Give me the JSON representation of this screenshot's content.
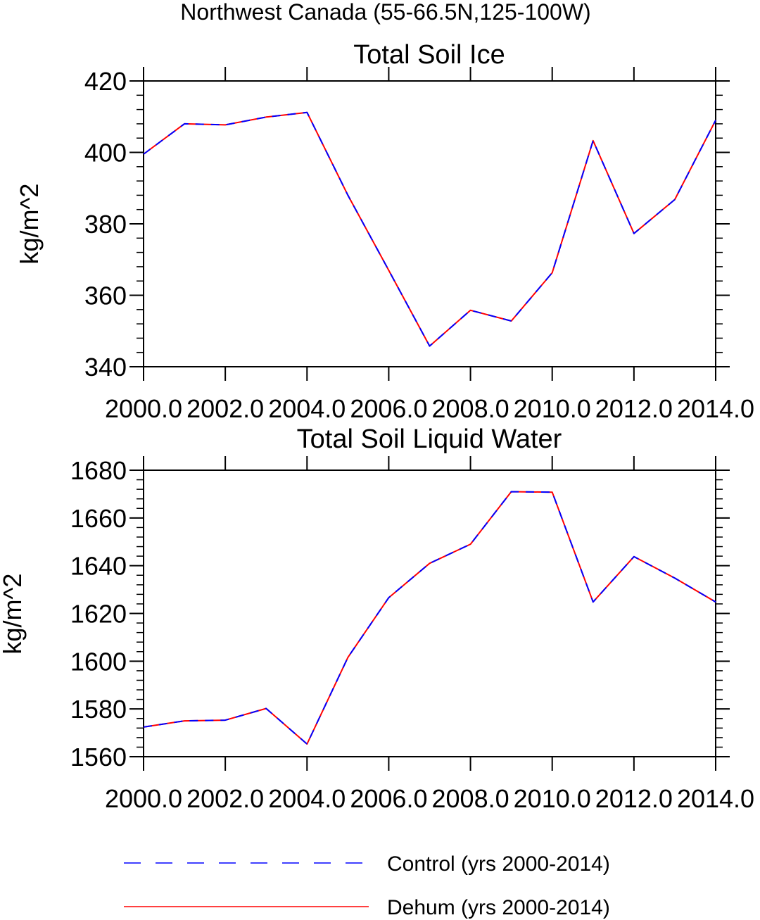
{
  "figure": {
    "title": "Northwest Canada (55-66.5N,125-100W)"
  },
  "chart_data": [
    {
      "type": "line",
      "title": "Total Soil Ice",
      "xlabel": "",
      "ylabel": "kg/m^2",
      "xlim": [
        2000,
        2014
      ],
      "ylim": [
        340,
        420
      ],
      "xticks": [
        2000,
        2002,
        2004,
        2006,
        2008,
        2010,
        2012,
        2014
      ],
      "xtick_labels": [
        "2000.0",
        "2002.0",
        "2004.0",
        "2006.0",
        "2008.0",
        "2010.0",
        "2012.0",
        "2014.0"
      ],
      "yticks": [
        340,
        360,
        380,
        400,
        420
      ],
      "ytick_labels": [
        "340",
        "360",
        "380",
        "400",
        "420"
      ],
      "x": [
        2000,
        2001,
        2002,
        2003,
        2004,
        2005,
        2006,
        2007,
        2008,
        2009,
        2010,
        2011,
        2012,
        2013,
        2014
      ],
      "series": [
        {
          "name": "Control (yrs 2000-2014)",
          "color": "#0000ff",
          "style": "dashed",
          "values": [
            399.5,
            408,
            407.7,
            409.9,
            411.2,
            388,
            367,
            345.8,
            355.8,
            352.8,
            366.3,
            403.3,
            377.3,
            386.8,
            409
          ]
        },
        {
          "name": "Dehum (yrs 2000-2014)",
          "color": "#ff0000",
          "style": "solid",
          "values": [
            399.5,
            408,
            407.7,
            409.9,
            411.2,
            388,
            367,
            345.8,
            355.8,
            352.8,
            366.3,
            403.3,
            377.3,
            386.8,
            409
          ]
        }
      ]
    },
    {
      "type": "line",
      "title": "Total Soil Liquid Water",
      "xlabel": "",
      "ylabel": "kg/m^2",
      "xlim": [
        2000,
        2014
      ],
      "ylim": [
        1560,
        1680
      ],
      "xticks": [
        2000,
        2002,
        2004,
        2006,
        2008,
        2010,
        2012,
        2014
      ],
      "xtick_labels": [
        "2000.0",
        "2002.0",
        "2004.0",
        "2006.0",
        "2008.0",
        "2010.0",
        "2012.0",
        "2014.0"
      ],
      "yticks": [
        1560,
        1580,
        1600,
        1620,
        1640,
        1660,
        1680
      ],
      "ytick_labels": [
        "1560",
        "1580",
        "1600",
        "1620",
        "1640",
        "1660",
        "1680"
      ],
      "x": [
        2000,
        2001,
        2002,
        2003,
        2004,
        2005,
        2006,
        2007,
        2008,
        2009,
        2010,
        2011,
        2012,
        2013,
        2014
      ],
      "series": [
        {
          "name": "Control (yrs 2000-2014)",
          "color": "#0000ff",
          "style": "dashed",
          "values": [
            1572.4,
            1575,
            1575.3,
            1580.2,
            1565.3,
            1601.6,
            1626.6,
            1641,
            1649,
            1671,
            1670.8,
            1624.8,
            1643.8,
            1634.8,
            1624.8
          ]
        },
        {
          "name": "Dehum (yrs 2000-2014)",
          "color": "#ff0000",
          "style": "solid",
          "values": [
            1572.4,
            1575,
            1575.3,
            1580.2,
            1565.3,
            1601.6,
            1626.6,
            1641,
            1649,
            1671,
            1670.8,
            1624.8,
            1643.8,
            1634.8,
            1624.8
          ]
        }
      ]
    }
  ],
  "legend": {
    "items": [
      {
        "label": "Control (yrs 2000-2014)",
        "color": "#0000ff",
        "style": "dashed"
      },
      {
        "label": "Dehum (yrs 2000-2014)",
        "color": "#ff0000",
        "style": "solid"
      }
    ]
  }
}
